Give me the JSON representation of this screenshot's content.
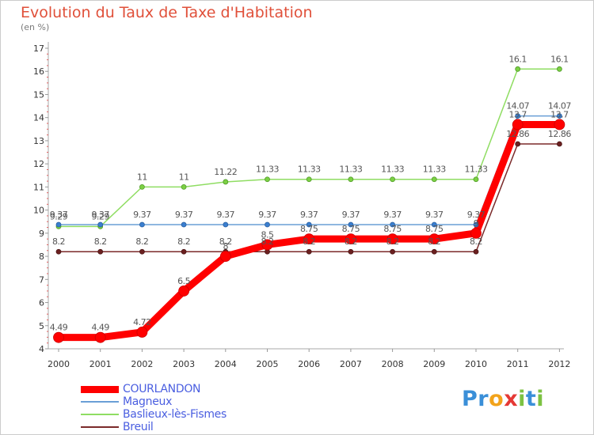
{
  "header": {
    "title": "Evolution du Taux de Taxe d'Habitation",
    "subtitle": "(en %)"
  },
  "logo": {
    "text": "Proxiti",
    "letters": [
      {
        "ch": "P",
        "color": "#3a8fd8"
      },
      {
        "ch": "r",
        "color": "#3a8fd8"
      },
      {
        "ch": "o",
        "color": "#f2a31b"
      },
      {
        "ch": "x",
        "color": "#e53935"
      },
      {
        "ch": "i",
        "color": "#7cc242"
      },
      {
        "ch": "t",
        "color": "#3a8fd8"
      },
      {
        "ch": "i",
        "color": "#7cc242"
      }
    ]
  },
  "chart_data": {
    "type": "line",
    "title": "Evolution du Taux de Taxe d'Habitation",
    "subtitle": "(en %)",
    "xlabel": "",
    "ylabel": "",
    "ylim": [
      4,
      17
    ],
    "yticks": [
      4,
      5,
      6,
      7,
      8,
      9,
      10,
      11,
      12,
      13,
      14,
      15,
      16,
      17
    ],
    "grid": false,
    "legend_position": "bottom-left",
    "categories": [
      "2000",
      "2001",
      "2002",
      "2003",
      "2004",
      "2005",
      "2006",
      "2007",
      "2008",
      "2009",
      "2010",
      "2011",
      "2012"
    ],
    "series": [
      {
        "name": "COURLANDON",
        "color": "#ff0000",
        "values": [
          4.49,
          4.49,
          4.72,
          6.5,
          8,
          8.5,
          8.75,
          8.75,
          8.75,
          8.75,
          9,
          13.7,
          13.7
        ],
        "labels": [
          "4.49",
          "4.49",
          "4.72",
          "6.5",
          "8",
          "8.5",
          "8.75",
          "8.75",
          "8.75",
          "8.75",
          "9",
          "13.7",
          "13.7"
        ]
      },
      {
        "name": "Magneux",
        "color": "#6a9fd6",
        "values": [
          9.37,
          9.37,
          9.37,
          9.37,
          9.37,
          9.37,
          9.37,
          9.37,
          9.37,
          9.37,
          9.37,
          14.07,
          14.07
        ],
        "labels": [
          "9.37",
          "9.37",
          "9.37",
          "9.37",
          "9.37",
          "9.37",
          "9.37",
          "9.37",
          "9.37",
          "9.37",
          "9.37",
          "14.07",
          "14.07"
        ]
      },
      {
        "name": "Baslieux-lès-Fismes",
        "color": "#8fdd62",
        "values": [
          9.29,
          9.29,
          11,
          11,
          11.22,
          11.33,
          11.33,
          11.33,
          11.33,
          11.33,
          11.33,
          16.1,
          16.1
        ],
        "labels": [
          "9.29",
          "9.29",
          "11",
          "11",
          "11.22",
          "11.33",
          "11.33",
          "11.33",
          "11.33",
          "11.33",
          "11.33",
          "16.1",
          "16.1"
        ]
      },
      {
        "name": "Breuil",
        "color": "#7b2a2a",
        "values": [
          8.2,
          8.2,
          8.2,
          8.2,
          8.2,
          8.2,
          8.2,
          8.2,
          8.2,
          8.2,
          8.2,
          12.86,
          12.86
        ],
        "labels": [
          "8.2",
          "8.2",
          "8.2",
          "8.2",
          "8.2",
          "8.2",
          "8.2",
          "8.2",
          "8.2",
          "8.2",
          "8.2",
          "12.86",
          "12.86"
        ]
      }
    ]
  }
}
